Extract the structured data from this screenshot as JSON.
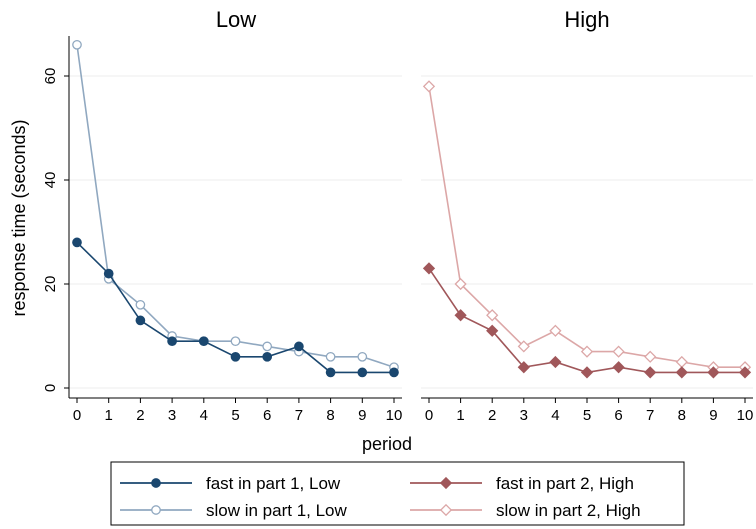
{
  "chart_data": {
    "type": "line",
    "ylabel": "response time (seconds)",
    "xlabel": "period",
    "x": [
      0,
      1,
      2,
      3,
      4,
      5,
      6,
      7,
      8,
      9,
      10
    ],
    "xlim": [
      0,
      10
    ],
    "ylim": [
      0,
      68
    ],
    "yticks": [
      0,
      20,
      40,
      60
    ],
    "grid": "horizontal",
    "legend_position": "bottom",
    "panels": [
      {
        "title": "Low",
        "series": [
          {
            "name": "fast in part 1, Low",
            "marker": "circle-filled",
            "color": "#1a476f",
            "values": [
              28,
              22,
              13,
              9,
              9,
              6,
              6,
              8,
              3,
              3,
              3
            ]
          },
          {
            "name": "slow in part 1, Low",
            "marker": "circle-hollow",
            "color": "#90a8c0",
            "values": [
              66,
              21,
              16,
              10,
              9,
              9,
              8,
              7,
              6,
              6,
              4
            ]
          }
        ]
      },
      {
        "title": "High",
        "series": [
          {
            "name": "fast in part 2, High",
            "marker": "diamond-filled",
            "color": "#a0575a",
            "values": [
              23,
              14,
              11,
              4,
              5,
              3,
              4,
              3,
              3,
              3,
              3
            ]
          },
          {
            "name": "slow in part 2, High",
            "marker": "diamond-hollow",
            "color": "#dca7a7",
            "values": [
              58,
              20,
              14,
              8,
              11,
              7,
              7,
              6,
              5,
              4,
              4
            ]
          }
        ]
      }
    ]
  }
}
